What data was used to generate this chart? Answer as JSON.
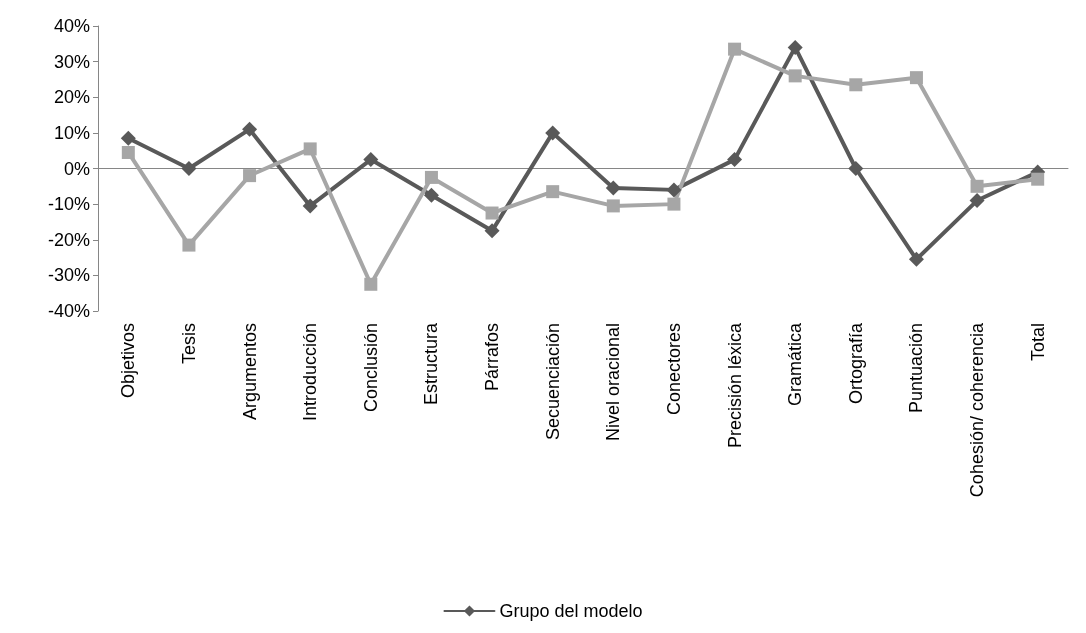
{
  "chart_data": {
    "type": "line",
    "categories": [
      "Objetivos",
      "Tesis",
      "Argumentos",
      "Introducción",
      "Conclusión",
      "Estructura",
      "Párrafos",
      "Secuenciación",
      "Nivel oracional",
      "Conectores",
      "Precisión léxica",
      "Gramática",
      "Ortografía",
      "Puntuación",
      "Cohesión/ coherencia",
      "Total"
    ],
    "series": [
      {
        "name": "Grupo del modelo",
        "color": "#595959",
        "marker": "diamond",
        "values": [
          8.5,
          0,
          11,
          -10.5,
          2.5,
          -7.5,
          -17.5,
          10,
          -5.5,
          -6,
          2.5,
          34,
          0,
          -25.5,
          -9,
          -1
        ]
      },
      {
        "color": "#a6a6a6",
        "marker": "square",
        "values": [
          4.5,
          -21.5,
          -2,
          5.5,
          -32.5,
          -2.5,
          -12.5,
          -6.5,
          -10.5,
          -10,
          33.5,
          26,
          23.5,
          25.5,
          -5,
          -3
        ]
      }
    ],
    "ylim": [
      -40,
      40
    ],
    "yticks": [
      {
        "value": -40,
        "label": "-40%"
      },
      {
        "value": -30,
        "label": "-30%"
      },
      {
        "value": -20,
        "label": "-20%"
      },
      {
        "value": -10,
        "label": "-10%"
      },
      {
        "value": 0,
        "label": "0%"
      },
      {
        "value": 10,
        "label": "10%"
      },
      {
        "value": 20,
        "label": "20%"
      },
      {
        "value": 30,
        "label": "30%"
      },
      {
        "value": 40,
        "label": "40%"
      }
    ],
    "legend": "bottom",
    "line_style": "solid"
  }
}
